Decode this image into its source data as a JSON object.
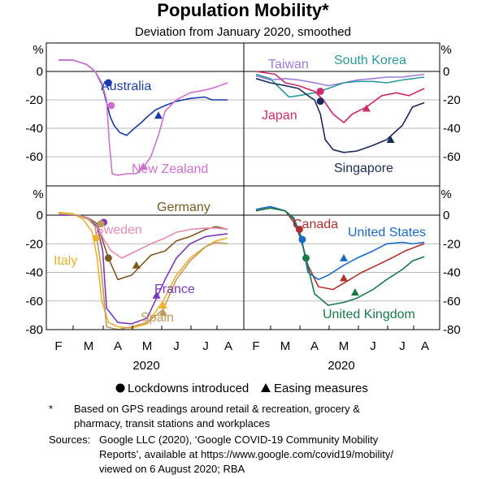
{
  "chart_data": {
    "type": "line",
    "title": "Population Mobility*",
    "subtitle": "Deviation from January 2020, smoothed",
    "unit": "%",
    "months": [
      "F",
      "M",
      "A",
      "M",
      "J",
      "J",
      "A"
    ],
    "year": "2020",
    "x_range": [
      "2020-02-01",
      "2020-08-01"
    ],
    "ylim_top": [
      -80,
      10
    ],
    "ylim_bottom": [
      -80,
      10
    ],
    "y_ticks_top": [
      "0",
      "-20",
      "-40",
      "-60"
    ],
    "y_ticks_bottom": [
      "0",
      "-20",
      "-40",
      "-60",
      "-80"
    ],
    "legend": {
      "lockdown": "Lockdowns introduced",
      "easing": "Easing measures"
    },
    "panels": [
      {
        "id": "top-left",
        "series": [
          {
            "name": "Australia",
            "color": "#1a3caa",
            "x": [
              "2020-02-01",
              "2020-02-15",
              "2020-02-28",
              "2020-03-08",
              "2020-03-15",
              "2020-03-20",
              "2020-03-24",
              "2020-03-28",
              "2020-04-03",
              "2020-04-10",
              "2020-04-18",
              "2020-04-25",
              "2020-05-01",
              "2020-05-10",
              "2020-05-20",
              "2020-06-01",
              "2020-06-15",
              "2020-06-30",
              "2020-07-10",
              "2020-07-20",
              "2020-07-31"
            ],
            "y": [
              8,
              8,
              5,
              0,
              -9,
              -22,
              -32,
              -38,
              -43,
              -45,
              -40,
              -36,
              -32,
              -27,
              -24,
              -21,
              -19,
              -18,
              -20,
              -20,
              -20
            ],
            "lockdown": {
              "x": "2020-03-22",
              "y": -8
            },
            "easing": {
              "x": "2020-05-13",
              "y": -31
            }
          },
          {
            "name": "New Zealand",
            "color": "#d070d0",
            "x": [
              "2020-02-01",
              "2020-02-15",
              "2020-02-28",
              "2020-03-08",
              "2020-03-15",
              "2020-03-20",
              "2020-03-23",
              "2020-03-26",
              "2020-04-01",
              "2020-04-10",
              "2020-04-20",
              "2020-04-27",
              "2020-05-05",
              "2020-05-13",
              "2020-05-20",
              "2020-06-01",
              "2020-06-15",
              "2020-07-01",
              "2020-07-15",
              "2020-07-31"
            ],
            "y": [
              8,
              8,
              5,
              0,
              -8,
              -20,
              -50,
              -72,
              -73,
              -72,
              -72,
              -68,
              -60,
              -45,
              -28,
              -20,
              -15,
              -13,
              -11,
              -8
            ],
            "lockdown": {
              "x": "2020-03-25",
              "y": -24
            },
            "easing": {
              "x": "2020-04-27",
              "y": -67
            }
          }
        ]
      },
      {
        "id": "top-right",
        "series": [
          {
            "name": "Taiwan",
            "color": "#9a7cd8",
            "x": [
              "2020-02-01",
              "2020-02-15",
              "2020-03-01",
              "2020-03-15",
              "2020-04-01",
              "2020-04-15",
              "2020-05-01",
              "2020-05-15",
              "2020-06-01",
              "2020-06-15",
              "2020-07-01",
              "2020-07-15",
              "2020-07-31"
            ],
            "y": [
              -3,
              -6,
              -5,
              -6,
              -8,
              -10,
              -8,
              -6,
              -5,
              -4,
              -4,
              -3,
              -2
            ]
          },
          {
            "name": "South Korea",
            "color": "#2a9a9a",
            "x": [
              "2020-02-01",
              "2020-02-15",
              "2020-02-25",
              "2020-03-05",
              "2020-03-15",
              "2020-04-01",
              "2020-04-15",
              "2020-05-01",
              "2020-05-15",
              "2020-06-01",
              "2020-06-15",
              "2020-07-01",
              "2020-07-15",
              "2020-07-31"
            ],
            "y": [
              -2,
              -5,
              -12,
              -18,
              -17,
              -15,
              -12,
              -8,
              -7,
              -7,
              -8,
              -6,
              -5,
              -4
            ]
          },
          {
            "name": "Japan",
            "color": "#d02a6a",
            "x": [
              "2020-02-01",
              "2020-02-20",
              "2020-03-01",
              "2020-03-15",
              "2020-04-01",
              "2020-04-10",
              "2020-04-20",
              "2020-05-01",
              "2020-05-10",
              "2020-05-25",
              "2020-06-10",
              "2020-06-25",
              "2020-07-10",
              "2020-07-31"
            ],
            "y": [
              0,
              -2,
              -8,
              -10,
              -14,
              -20,
              -30,
              -36,
              -30,
              -25,
              -17,
              -15,
              -17,
              -12
            ],
            "lockdown": {
              "x": "2020-04-07",
              "y": -14
            },
            "easing": {
              "x": "2020-05-25",
              "y": -26
            }
          },
          {
            "name": "Singapore",
            "color": "#1a2a5a",
            "x": [
              "2020-02-01",
              "2020-02-15",
              "2020-03-01",
              "2020-03-15",
              "2020-03-25",
              "2020-04-01",
              "2020-04-07",
              "2020-04-12",
              "2020-04-20",
              "2020-05-01",
              "2020-05-15",
              "2020-06-01",
              "2020-06-15",
              "2020-07-01",
              "2020-07-15",
              "2020-07-31"
            ],
            "y": [
              -5,
              -8,
              -10,
              -12,
              -17,
              -20,
              -30,
              -48,
              -55,
              -57,
              -56,
              -52,
              -48,
              -38,
              -25,
              -22
            ],
            "lockdown": {
              "x": "2020-04-07",
              "y": -21
            },
            "easing": {
              "x": "2020-06-19",
              "y": -48
            }
          }
        ]
      },
      {
        "id": "bottom-left",
        "series": [
          {
            "name": "Germany",
            "color": "#7a5a20",
            "x": [
              "2020-02-01",
              "2020-02-20",
              "2020-03-01",
              "2020-03-10",
              "2020-03-17",
              "2020-03-22",
              "2020-04-01",
              "2020-04-15",
              "2020-04-25",
              "2020-05-05",
              "2020-05-20",
              "2020-06-01",
              "2020-06-15",
              "2020-07-01",
              "2020-07-15",
              "2020-07-31"
            ],
            "y": [
              0,
              0,
              -2,
              -6,
              -20,
              -30,
              -45,
              -42,
              -35,
              -28,
              -25,
              -18,
              -15,
              -10,
              -8,
              -10
            ],
            "lockdown": {
              "x": "2020-03-22",
              "y": -30
            },
            "easing": {
              "x": "2020-04-20",
              "y": -35
            }
          },
          {
            "name": "Sweden",
            "color": "#e88ab5",
            "x": [
              "2020-02-01",
              "2020-02-20",
              "2020-03-01",
              "2020-03-10",
              "2020-03-18",
              "2020-03-25",
              "2020-04-05",
              "2020-04-20",
              "2020-05-05",
              "2020-05-20",
              "2020-06-01",
              "2020-06-15",
              "2020-07-01",
              "2020-07-15",
              "2020-07-31"
            ],
            "y": [
              0,
              0,
              -2,
              -8,
              -18,
              -25,
              -30,
              -25,
              -20,
              -16,
              -12,
              -10,
              -9,
              -9,
              -10
            ]
          },
          {
            "name": "Italy",
            "color": "#f0b030",
            "x": [
              "2020-02-01",
              "2020-02-15",
              "2020-02-25",
              "2020-03-05",
              "2020-03-10",
              "2020-03-15",
              "2020-03-22",
              "2020-04-01",
              "2020-04-15",
              "2020-05-01",
              "2020-05-18",
              "2020-06-01",
              "2020-06-15",
              "2020-07-01",
              "2020-07-15",
              "2020-07-31"
            ],
            "y": [
              2,
              1,
              -3,
              -12,
              -30,
              -60,
              -75,
              -78,
              -79,
              -76,
              -60,
              -42,
              -30,
              -22,
              -18,
              -16
            ],
            "lockdown": {
              "x": "2020-03-09",
              "y": -16
            },
            "easing": {
              "x": "2020-05-18",
              "y": -63
            }
          },
          {
            "name": "France",
            "color": "#7a3ab8",
            "x": [
              "2020-02-01",
              "2020-02-20",
              "2020-03-01",
              "2020-03-10",
              "2020-03-16",
              "2020-03-20",
              "2020-04-01",
              "2020-04-15",
              "2020-05-01",
              "2020-05-11",
              "2020-05-20",
              "2020-06-01",
              "2020-06-15",
              "2020-07-01",
              "2020-07-15",
              "2020-07-31"
            ],
            "y": [
              0,
              0,
              -3,
              -8,
              -25,
              -65,
              -75,
              -76,
              -72,
              -58,
              -45,
              -30,
              -20,
              -15,
              -14,
              -13
            ],
            "lockdown": {
              "x": "2020-03-17",
              "y": -5
            },
            "easing": {
              "x": "2020-05-11",
              "y": -56
            }
          },
          {
            "name": "Spain",
            "color": "#c09a5a",
            "x": [
              "2020-02-01",
              "2020-02-20",
              "2020-03-01",
              "2020-03-08",
              "2020-03-14",
              "2020-03-20",
              "2020-04-01",
              "2020-04-15",
              "2020-05-01",
              "2020-05-18",
              "2020-06-01",
              "2020-06-15",
              "2020-07-01",
              "2020-07-15",
              "2020-07-31"
            ],
            "y": [
              1,
              0,
              -3,
              -8,
              -35,
              -78,
              -80,
              -78,
              -75,
              -66,
              -45,
              -32,
              -22,
              -19,
              -20
            ],
            "lockdown": {
              "x": "2020-03-14",
              "y": -6
            },
            "easing": {
              "x": "2020-05-18",
              "y": -68
            }
          }
        ]
      },
      {
        "id": "bottom-right",
        "series": [
          {
            "name": "Canada",
            "color": "#b03030",
            "x": [
              "2020-02-01",
              "2020-02-15",
              "2020-03-01",
              "2020-03-10",
              "2020-03-17",
              "2020-03-25",
              "2020-04-05",
              "2020-04-20",
              "2020-05-05",
              "2020-05-20",
              "2020-06-05",
              "2020-06-20",
              "2020-07-05",
              "2020-07-20",
              "2020-07-31"
            ],
            "y": [
              3,
              5,
              3,
              -5,
              -15,
              -35,
              -50,
              -52,
              -46,
              -40,
              -35,
              -30,
              -25,
              -22,
              -20
            ],
            "lockdown": {
              "x": "2020-03-16",
              "y": -10
            },
            "easing": {
              "x": "2020-05-01",
              "y": -44
            }
          },
          {
            "name": "United States",
            "color": "#1a6ac8",
            "x": [
              "2020-02-01",
              "2020-02-15",
              "2020-03-01",
              "2020-03-10",
              "2020-03-18",
              "2020-03-25",
              "2020-04-05",
              "2020-04-15",
              "2020-05-01",
              "2020-05-15",
              "2020-06-01",
              "2020-06-15",
              "2020-07-01",
              "2020-07-15",
              "2020-07-31"
            ],
            "y": [
              4,
              6,
              3,
              -2,
              -15,
              -40,
              -45,
              -42,
              -35,
              -30,
              -25,
              -20,
              -19,
              -20,
              -19
            ],
            "lockdown": {
              "x": "2020-03-19",
              "y": -17
            },
            "easing": {
              "x": "2020-05-01",
              "y": -30
            }
          },
          {
            "name": "United Kingdom",
            "color": "#1a7a4a",
            "x": [
              "2020-02-01",
              "2020-02-15",
              "2020-03-01",
              "2020-03-10",
              "2020-03-18",
              "2020-03-23",
              "2020-04-01",
              "2020-04-15",
              "2020-05-01",
              "2020-05-15",
              "2020-06-01",
              "2020-06-15",
              "2020-07-01",
              "2020-07-15",
              "2020-07-31"
            ],
            "y": [
              3,
              5,
              3,
              -3,
              -18,
              -30,
              -55,
              -63,
              -61,
              -58,
              -52,
              -45,
              -38,
              -32,
              -29
            ],
            "lockdown": {
              "x": "2020-03-23",
              "y": -30
            },
            "easing": {
              "x": "2020-05-13",
              "y": -54
            }
          }
        ]
      }
    ]
  },
  "footnotes": {
    "star_marker": "*",
    "star_text_1": "Based on GPS readings around retail & recreation, grocery &",
    "star_text_2": "pharmacy, transit stations and workplaces",
    "sources_label": "Sources:",
    "sources_1": "Google LLC (2020), ‘Google COVID-19 Community Mobility",
    "sources_2": "Reports’, available at https://www.google.com/covid19/mobility/",
    "sources_3": "viewed on 6 August 2020; RBA"
  }
}
